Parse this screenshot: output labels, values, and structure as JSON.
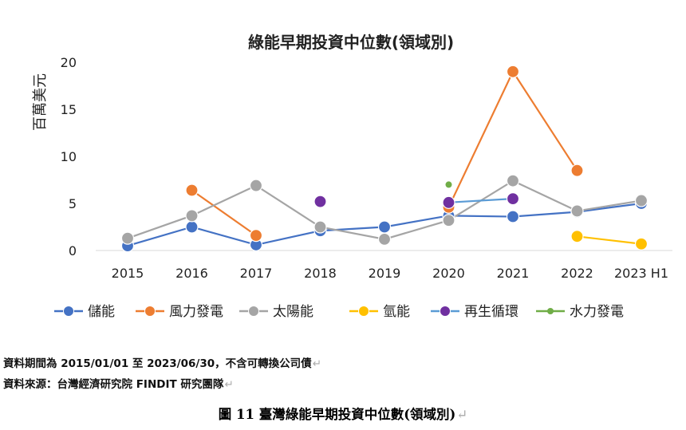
{
  "chart_data": {
    "type": "line",
    "title": "綠能早期投資中位數(領域別)",
    "ylabel": "百萬美元",
    "ylim": [
      0,
      20
    ],
    "yticks": [
      "0",
      "5",
      "10",
      "15",
      "20"
    ],
    "categories": [
      "2015",
      "2016",
      "2017",
      "2018",
      "2019",
      "2020",
      "2021",
      "2022",
      "2023 H1"
    ],
    "grid": false,
    "legend_position": "bottom",
    "series": [
      {
        "name": "儲能",
        "color": "#4472C4",
        "values": [
          0.5,
          2.5,
          0.6,
          2.1,
          2.5,
          3.7,
          3.6,
          4.1,
          5.0
        ]
      },
      {
        "name": "風力發電",
        "color": "#ED7D31",
        "values": [
          null,
          6.4,
          1.6,
          null,
          null,
          4.6,
          19.0,
          8.5,
          null
        ]
      },
      {
        "name": "太陽能",
        "color": "#A5A5A5",
        "values": [
          1.3,
          3.7,
          6.9,
          2.5,
          1.2,
          3.2,
          7.4,
          4.2,
          5.3
        ]
      },
      {
        "name": "氫能",
        "color": "#FFC000",
        "values": [
          null,
          null,
          null,
          null,
          null,
          null,
          null,
          1.5,
          0.7
        ]
      },
      {
        "name": "再生循環",
        "color": "#5B9BD5",
        "marker_color": "#7030A0",
        "values": [
          null,
          null,
          null,
          5.2,
          null,
          5.1,
          5.5,
          null,
          null
        ]
      },
      {
        "name": "水力發電",
        "color": "#70AD47",
        "values": [
          null,
          null,
          null,
          null,
          null,
          7.0,
          null,
          null,
          null
        ]
      }
    ]
  },
  "notes": {
    "period": "資料期間為 2015/01/01 至 2023/06/30，不含可轉換公司債",
    "source": "資料來源：台灣經濟研究院 FINDIT 研究團隊",
    "return_mark": "↵"
  },
  "caption": "圖 11  臺灣綠能早期投資中位數(領域別)"
}
